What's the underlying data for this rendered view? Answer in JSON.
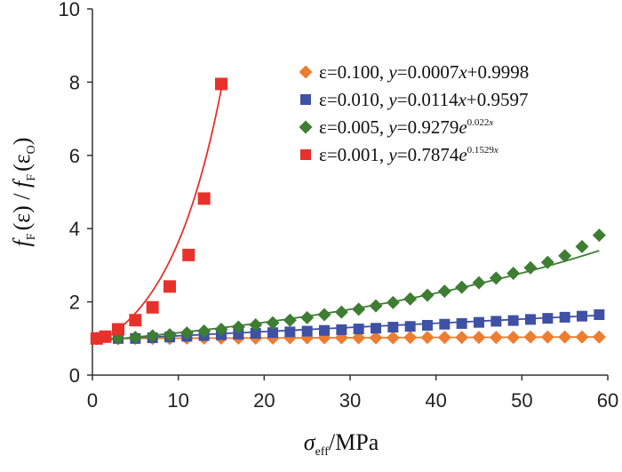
{
  "chart_data": {
    "type": "scatter",
    "title": "",
    "xlabel": {
      "main": "σ",
      "sub": "eff",
      "rest": "/MPa"
    },
    "ylabel": {
      "parts": [
        "f",
        "F",
        "(ε)",
        "/",
        "f",
        "F",
        "(ε",
        "O",
        ")"
      ]
    },
    "xlim": [
      0,
      60
    ],
    "ylim": [
      0,
      10
    ],
    "x_ticks": [
      0,
      10,
      20,
      30,
      40,
      50,
      60
    ],
    "y_ticks": [
      0,
      2,
      4,
      6,
      8,
      10
    ],
    "legend_position": "top-right",
    "series": [
      {
        "name": "ε=0.100, y=0.0007x+0.9998",
        "legend_parts": [
          "ε=0.100, ",
          "y",
          "=0.0007",
          "x",
          "+0.9998"
        ],
        "marker": "diamond",
        "color": "#ED7D31",
        "fit": {
          "type": "linear",
          "a": 0.0007,
          "b": 0.9998
        },
        "x": [
          0.5,
          3,
          5,
          7,
          9,
          11,
          13,
          15,
          17,
          19,
          21,
          23,
          25,
          27,
          29,
          31,
          33,
          35,
          37,
          39,
          41,
          43,
          45,
          47,
          49,
          51,
          53,
          55,
          57,
          59
        ],
        "y": [
          1.0,
          1.0,
          1.0,
          1.0,
          1.0,
          1.01,
          1.01,
          1.01,
          1.01,
          1.01,
          1.01,
          1.02,
          1.02,
          1.02,
          1.02,
          1.02,
          1.02,
          1.02,
          1.03,
          1.03,
          1.03,
          1.03,
          1.03,
          1.03,
          1.03,
          1.04,
          1.04,
          1.04,
          1.04,
          1.04
        ]
      },
      {
        "name": "ε=0.010, y=0.0114x+0.9597",
        "legend_parts": [
          "ε=0.010, ",
          "y",
          "=0.0114",
          "x",
          "+0.9597"
        ],
        "marker": "square",
        "color": "#3F51A5",
        "fit": {
          "type": "linear",
          "a": 0.0114,
          "b": 0.9597
        },
        "x": [
          0.5,
          3,
          5,
          7,
          9,
          11,
          13,
          15,
          17,
          19,
          21,
          23,
          25,
          27,
          29,
          31,
          33,
          35,
          37,
          39,
          41,
          43,
          45,
          47,
          49,
          51,
          53,
          55,
          57,
          59
        ],
        "y": [
          1.0,
          1.0,
          1.0,
          1.02,
          1.04,
          1.06,
          1.08,
          1.1,
          1.12,
          1.14,
          1.16,
          1.18,
          1.2,
          1.22,
          1.24,
          1.26,
          1.28,
          1.31,
          1.33,
          1.36,
          1.39,
          1.41,
          1.44,
          1.47,
          1.49,
          1.52,
          1.55,
          1.58,
          1.61,
          1.65
        ]
      },
      {
        "name": "ε=0.005, y=0.9279e^0.022x",
        "legend_parts": [
          "ε=0.005, ",
          "y",
          "=0.9279",
          "e",
          "0.022",
          "x"
        ],
        "marker": "diamond",
        "color": "#3E7D32",
        "fit": {
          "type": "exponential",
          "a": 0.9279,
          "b": 0.022
        },
        "x": [
          0.5,
          3,
          5,
          7,
          9,
          11,
          13,
          15,
          17,
          19,
          21,
          23,
          25,
          27,
          29,
          31,
          33,
          35,
          37,
          39,
          41,
          43,
          45,
          47,
          49,
          51,
          53,
          55,
          57,
          59
        ],
        "y": [
          1.0,
          1.0,
          1.03,
          1.07,
          1.1,
          1.15,
          1.2,
          1.25,
          1.31,
          1.37,
          1.43,
          1.5,
          1.57,
          1.65,
          1.72,
          1.8,
          1.89,
          1.98,
          2.08,
          2.18,
          2.29,
          2.4,
          2.52,
          2.65,
          2.78,
          2.93,
          3.08,
          3.26,
          3.51,
          3.82
        ]
      },
      {
        "name": "ε=0.001, y=0.7874e^0.1529x",
        "legend_parts": [
          "ε=0.001, ",
          "y",
          "=0.7874",
          "e",
          "0.1529",
          "x"
        ],
        "marker": "square",
        "color": "#E8312A",
        "fit": {
          "type": "exponential",
          "a": 0.7874,
          "b": 0.1529
        },
        "x": [
          0.5,
          1.5,
          3,
          5,
          7,
          9,
          11.2,
          13,
          15
        ],
        "y": [
          1.0,
          1.05,
          1.25,
          1.5,
          1.85,
          2.42,
          3.28,
          4.82,
          7.95
        ]
      }
    ]
  }
}
